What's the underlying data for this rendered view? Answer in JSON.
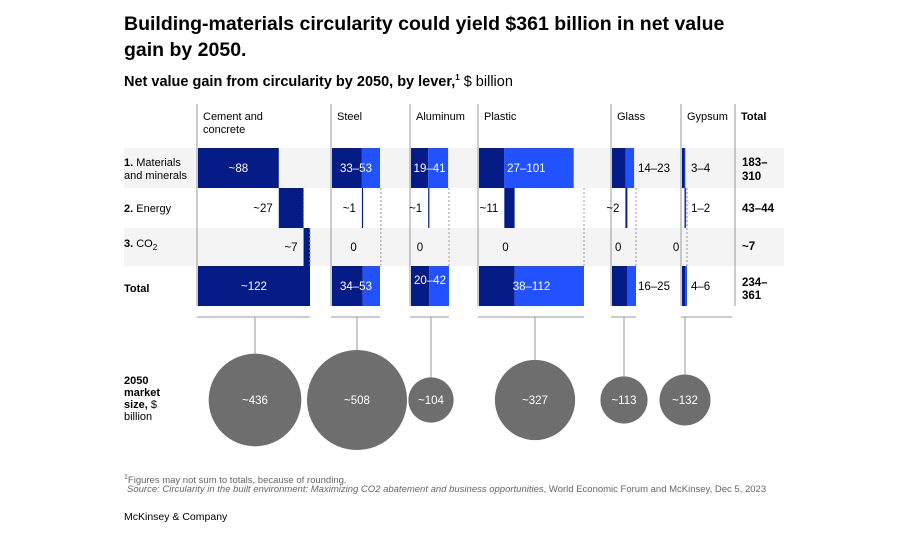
{
  "title": "Building-materials circularity could yield $361 billion in net value gain by 2050.",
  "subtitle": {
    "main": "Net value gain from circularity by 2050, by lever,",
    "sup": "1",
    "unit": " $ billion"
  },
  "footnote": "Figures may not sum to totals, because of rounding.",
  "footnote_mark": "1",
  "source": {
    "prefix": "Source: ",
    "title": "Circularity in the built environment: Maximizing CO2 abatement and business opportunities",
    "rest": ", World Economic Forum and McKinsey, Dec 5, 2023"
  },
  "brand": "McKinsey & Company",
  "colors": {
    "dark": "#051c87",
    "light": "#2251ff",
    "bubble": "#6e6e6e",
    "row_bg": "#f4f4f4",
    "text": "#000000"
  },
  "chart_data": {
    "type": "bar",
    "title": "Net value gain from circularity by 2050, by lever",
    "unit": "$ billion",
    "levers": [
      {
        "num": "1.",
        "label": "Materials and minerals"
      },
      {
        "num": "2.",
        "label": "Energy"
      },
      {
        "num": "3.",
        "label": "CO2"
      },
      {
        "num": "",
        "label": "Total"
      }
    ],
    "materials": [
      {
        "name": "Cement and concrete",
        "cells": [
          {
            "min": 88,
            "max": 88,
            "label": "~88"
          },
          {
            "min": 27,
            "max": 27,
            "label": "~27"
          },
          {
            "min": 7,
            "max": 7,
            "label": "~7"
          },
          {
            "min": 122,
            "max": 122,
            "label": "~122"
          }
        ],
        "market_size": 436,
        "market_label": "~436"
      },
      {
        "name": "Steel",
        "cells": [
          {
            "min": 33,
            "max": 53,
            "label": "33–53"
          },
          {
            "min": 1,
            "max": 1,
            "label": "~1"
          },
          {
            "min": 0,
            "max": 0,
            "label": "0"
          },
          {
            "min": 34,
            "max": 53,
            "label": "34–53"
          }
        ],
        "market_size": 508,
        "market_label": "~508"
      },
      {
        "name": "Aluminum",
        "cells": [
          {
            "min": 19,
            "max": 41,
            "label": "19–41"
          },
          {
            "min": 1,
            "max": 1,
            "label": "~1"
          },
          {
            "min": 0,
            "max": 0,
            "label": "0"
          },
          {
            "min": 20,
            "max": 42,
            "label": "20–42"
          }
        ],
        "market_size": 104,
        "market_label": "~104"
      },
      {
        "name": "Plastic",
        "cells": [
          {
            "min": 27,
            "max": 101,
            "label": "27–101"
          },
          {
            "min": 11,
            "max": 11,
            "label": "~11"
          },
          {
            "min": 0,
            "max": 0,
            "label": "0"
          },
          {
            "min": 38,
            "max": 112,
            "label": "38–112"
          }
        ],
        "market_size": 327,
        "market_label": "~327"
      },
      {
        "name": "Glass",
        "cells": [
          {
            "min": 14,
            "max": 23,
            "label": "14–23"
          },
          {
            "min": 2,
            "max": 2,
            "label": "~2"
          },
          {
            "min": 0,
            "max": 0,
            "label": "0"
          },
          {
            "min": 16,
            "max": 25,
            "label": "16–25"
          }
        ],
        "market_size": 113,
        "market_label": "~113"
      },
      {
        "name": "Gypsum",
        "cells": [
          {
            "min": 3,
            "max": 4,
            "label": "3–4"
          },
          {
            "min": 1,
            "max": 2,
            "label": "1–2"
          },
          {
            "min": 0,
            "max": 0,
            "label": "0"
          },
          {
            "min": 4,
            "max": 6,
            "label": "4–6"
          }
        ],
        "market_size": 132,
        "market_label": "~132"
      }
    ],
    "total_header": "Total",
    "totals": [
      "183–310",
      "43–44",
      "~7",
      "234–361"
    ],
    "market_label": "2050 market size, $ billion",
    "legend": "none",
    "grid": false
  }
}
